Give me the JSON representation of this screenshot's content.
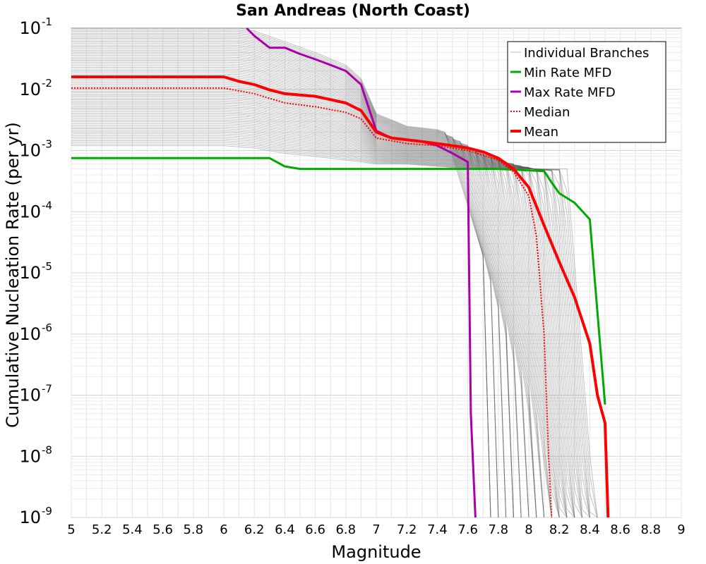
{
  "chart_data": {
    "type": "line",
    "title": "San Andreas (North Coast)",
    "xlabel": "Magnitude",
    "ylabel": "Cumulative Nucleation Rate (per yr)",
    "xlim": [
      5,
      9
    ],
    "ylim": [
      1e-09,
      0.1
    ],
    "yscale": "log",
    "grid": true,
    "legend_position": "top-right",
    "x_ticks": [
      "5",
      "5.2",
      "5.4",
      "5.6",
      "5.8",
      "6",
      "6.2",
      "6.4",
      "6.6",
      "6.8",
      "7",
      "7.2",
      "7.4",
      "7.6",
      "7.8",
      "8",
      "8.2",
      "8.4",
      "8.6",
      "8.8",
      "9"
    ],
    "y_ticks": [
      {
        "base": "10",
        "exp": "-1",
        "value": 0.1
      },
      {
        "base": "10",
        "exp": "-2",
        "value": 0.01
      },
      {
        "base": "10",
        "exp": "-3",
        "value": 0.001
      },
      {
        "base": "10",
        "exp": "-4",
        "value": 0.0001
      },
      {
        "base": "10",
        "exp": "-5",
        "value": 1e-05
      },
      {
        "base": "10",
        "exp": "-6",
        "value": 1e-06
      },
      {
        "base": "10",
        "exp": "-7",
        "value": 1e-07
      },
      {
        "base": "10",
        "exp": "-8",
        "value": 1e-08
      },
      {
        "base": "10",
        "exp": "-9",
        "value": 1e-09
      }
    ],
    "series": [
      {
        "name": "Individual Branches",
        "color": "#555555",
        "style": "thin-band",
        "note": "many logic-tree branch curves spanning roughly the range between the min and max MFDs",
        "upper": {
          "x": [
            5,
            6.0,
            6.1,
            6.2,
            6.4,
            6.6,
            6.8,
            6.9,
            7.0,
            7.2,
            7.4,
            7.6,
            7.8,
            8.0,
            8.2,
            8.4,
            8.5
          ],
          "y": [
            0.1,
            0.1,
            0.1,
            0.09,
            0.06,
            0.04,
            0.025,
            0.015,
            0.004,
            0.0025,
            0.0022,
            0.0015,
            0.001,
            0.0006,
            0.0002,
            6e-05,
            5e-06
          ]
        },
        "lower": {
          "x": [
            5,
            6.0,
            6.2,
            6.4,
            6.6,
            6.8,
            7.0,
            7.2,
            7.4,
            7.6,
            7.7,
            7.75,
            7.8,
            7.9,
            8.0,
            8.1,
            8.2,
            8.3,
            8.4
          ],
          "y": [
            0.0012,
            0.0012,
            0.0011,
            0.0009,
            0.0008,
            0.0007,
            0.0006,
            0.0006,
            0.00055,
            0.0005,
            0.0004,
            1e-06,
            1e-09,
            1e-09,
            1e-09,
            1e-09,
            1e-09,
            1e-09,
            1e-09
          ]
        }
      },
      {
        "name": "Min Rate MFD",
        "color": "#00aa00",
        "style": "solid",
        "x": [
          5,
          6.3,
          6.4,
          6.5,
          7.0,
          7.5,
          7.8,
          8.1,
          8.15,
          8.2,
          8.3,
          8.4,
          8.5
        ],
        "y": [
          0.00075,
          0.00075,
          0.00055,
          0.0005,
          0.0005,
          0.0005,
          0.0005,
          0.00046,
          0.0003,
          0.0002,
          0.00014,
          7.5e-05,
          7e-08
        ]
      },
      {
        "name": "Max Rate MFD",
        "color": "#aa00aa",
        "style": "solid",
        "x": [
          6.15,
          6.2,
          6.3,
          6.4,
          6.5,
          6.6,
          6.7,
          6.8,
          6.9,
          7.0,
          7.1,
          7.2,
          7.3,
          7.4,
          7.5,
          7.6,
          7.62,
          7.65
        ],
        "y": [
          0.11,
          0.075,
          0.048,
          0.048,
          0.038,
          0.031,
          0.025,
          0.02,
          0.012,
          0.0021,
          0.0016,
          0.0015,
          0.0014,
          0.0012,
          0.0009,
          0.00065,
          5e-08,
          1e-09
        ]
      },
      {
        "name": "Median",
        "color": "#ff0000",
        "style": "dotted",
        "x": [
          5,
          6.0,
          6.2,
          6.4,
          6.6,
          6.8,
          6.9,
          7.0,
          7.2,
          7.4,
          7.6,
          7.8,
          7.9,
          8.0,
          8.05,
          8.1,
          8.13,
          8.15
        ],
        "y": [
          0.0105,
          0.0105,
          0.0085,
          0.006,
          0.0052,
          0.0042,
          0.0033,
          0.0016,
          0.0013,
          0.0012,
          0.001,
          0.0007,
          0.00045,
          0.00018,
          4e-05,
          1e-06,
          1e-08,
          1e-09
        ]
      },
      {
        "name": "Mean",
        "color": "#ff0000",
        "style": "thick",
        "x": [
          5,
          6.0,
          6.1,
          6.2,
          6.3,
          6.4,
          6.5,
          6.6,
          6.7,
          6.8,
          6.9,
          7.0,
          7.1,
          7.2,
          7.3,
          7.4,
          7.5,
          7.6,
          7.7,
          7.8,
          7.9,
          8.0,
          8.1,
          8.2,
          8.3,
          8.4,
          8.45,
          8.5,
          8.52
        ],
        "y": [
          0.016,
          0.016,
          0.0135,
          0.012,
          0.0098,
          0.0085,
          0.0081,
          0.0077,
          0.0068,
          0.006,
          0.0045,
          0.002,
          0.0016,
          0.0015,
          0.0014,
          0.0013,
          0.0012,
          0.0011,
          0.00095,
          0.00075,
          0.0005,
          0.00025,
          6e-05,
          1.5e-05,
          4e-06,
          7e-07,
          1e-07,
          3.5e-08,
          1e-09
        ]
      }
    ]
  }
}
